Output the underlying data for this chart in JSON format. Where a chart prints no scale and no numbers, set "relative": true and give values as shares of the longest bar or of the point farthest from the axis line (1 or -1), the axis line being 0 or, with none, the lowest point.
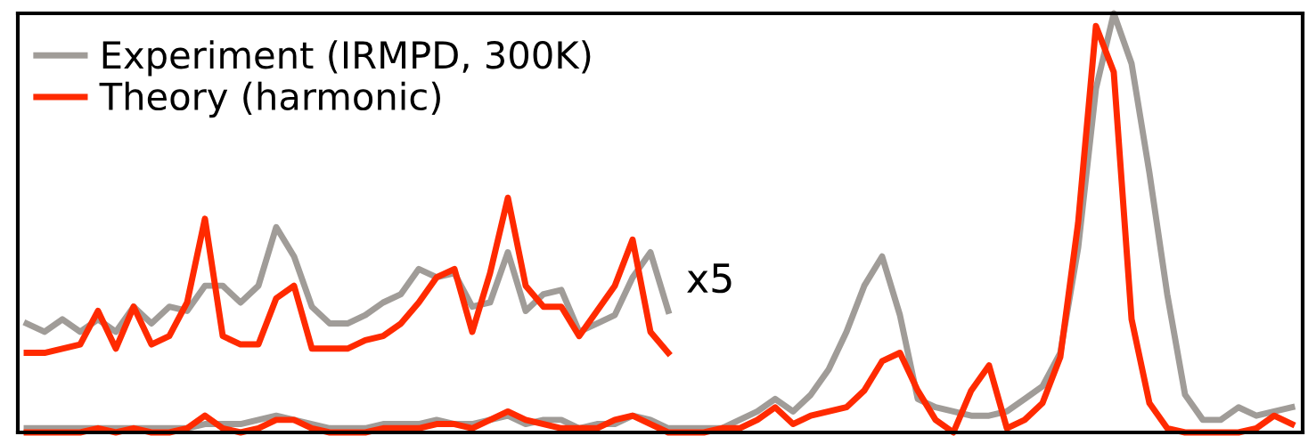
{
  "chart_data": {
    "type": "line",
    "relative": true,
    "legend": "top left",
    "grid": false,
    "categories": [
      null,
      null,
      null,
      null,
      null,
      null,
      null,
      null,
      null,
      null,
      null,
      null,
      null,
      null,
      null,
      null,
      null,
      null,
      null,
      null,
      null,
      null,
      null,
      null,
      null,
      null,
      null,
      null,
      null,
      null,
      null,
      null,
      null,
      null,
      null,
      null,
      null,
      null,
      null,
      null,
      null,
      null,
      null,
      null,
      null,
      null,
      null,
      null,
      null,
      null,
      null,
      null,
      null,
      null,
      null,
      null,
      null,
      null,
      null,
      null,
      null,
      null,
      null,
      null,
      null,
      null,
      null,
      null,
      null,
      null,
      null,
      null
    ],
    "series": [
      {
        "name": "Experiment (IRMPD, 300K)",
        "color": "#a09c98",
        "values": [
          0.01,
          0.01,
          0.01,
          0.01,
          0.01,
          0.01,
          0.01,
          0.01,
          0.01,
          0.01,
          0.02,
          0.02,
          0.02,
          0.03,
          0.04,
          0.03,
          0.02,
          0.01,
          0.01,
          0.01,
          0.02,
          0.02,
          0.02,
          0.03,
          0.02,
          0.02,
          0.03,
          0.04,
          0.02,
          0.03,
          0.03,
          0.01,
          0.02,
          0.02,
          0.04,
          0.03,
          0.01,
          0.01,
          0.01,
          0.01,
          0.03,
          0.05,
          0.08,
          0.05,
          0.09,
          0.15,
          0.24,
          0.35,
          0.42,
          0.28,
          0.08,
          0.06,
          0.05,
          0.04,
          0.04,
          0.05,
          0.08,
          0.11,
          0.19,
          0.44,
          0.82,
          1.0,
          0.88,
          0.62,
          0.33,
          0.09,
          0.03,
          0.03,
          0.06,
          0.04,
          0.05,
          0.06
        ]
      },
      {
        "name": "Theory (harmonic)",
        "color": "#ff2a00",
        "values": [
          0,
          0,
          0,
          0,
          0.01,
          0,
          0.01,
          0,
          0,
          0.01,
          0.04,
          0.01,
          0,
          0.01,
          0.03,
          0.03,
          0.01,
          0,
          0,
          0,
          0.01,
          0.01,
          0.01,
          0.02,
          0.02,
          0.01,
          0.03,
          0.05,
          0.03,
          0.02,
          0.01,
          0.01,
          0.01,
          0.03,
          0.04,
          0.02,
          0,
          0,
          0,
          0.01,
          0.01,
          0.03,
          0.06,
          0.02,
          0.04,
          0.05,
          0.06,
          0.1,
          0.17,
          0.19,
          0.1,
          0.03,
          0,
          0.1,
          0.16,
          0.01,
          0.03,
          0.07,
          0.18,
          0.5,
          0.97,
          0.86,
          0.27,
          0.07,
          0.01,
          0,
          0,
          0,
          0,
          0.01,
          0.04,
          0.02
        ]
      },
      {
        "color": "#a09c98",
        "values": [
          0.26,
          0.24,
          0.27,
          0.24,
          0.27,
          0.24,
          0.3,
          0.26,
          0.3,
          0.29,
          0.35,
          0.35,
          0.31,
          0.35,
          0.49,
          0.42,
          0.3,
          0.26,
          0.26,
          0.28,
          0.31,
          0.33,
          0.39,
          0.37,
          0.38,
          0.3,
          0.31,
          0.43,
          0.29,
          0.33,
          0.34,
          0.24,
          0.26,
          0.28,
          0.37,
          0.43,
          0.29,
          null,
          null,
          null,
          null,
          null,
          null,
          null,
          null,
          null,
          null,
          null,
          null,
          null,
          null,
          null,
          null,
          null,
          null,
          null,
          null,
          null,
          null,
          null,
          null,
          null,
          null,
          null,
          null,
          null,
          null,
          null,
          null,
          null,
          null,
          null
        ]
      },
      {
        "color": "#ff2a00",
        "values": [
          0.19,
          0.19,
          0.2,
          0.21,
          0.29,
          0.2,
          0.3,
          0.21,
          0.23,
          0.31,
          0.51,
          0.23,
          0.21,
          0.21,
          0.32,
          0.35,
          0.2,
          0.2,
          0.2,
          0.22,
          0.23,
          0.26,
          0.31,
          0.37,
          0.39,
          0.24,
          0.38,
          0.56,
          0.35,
          0.3,
          0.3,
          0.23,
          0.29,
          0.35,
          0.46,
          0.24,
          0.19,
          null,
          null,
          null,
          null,
          null,
          null,
          null,
          null,
          null,
          null,
          null,
          null,
          null,
          null,
          null,
          null,
          null,
          null,
          null,
          null,
          null,
          null,
          null,
          null,
          null,
          null,
          null,
          null,
          null,
          null,
          null,
          null,
          null,
          null,
          null
        ]
      }
    ],
    "annotations": [
      "x5"
    ]
  }
}
